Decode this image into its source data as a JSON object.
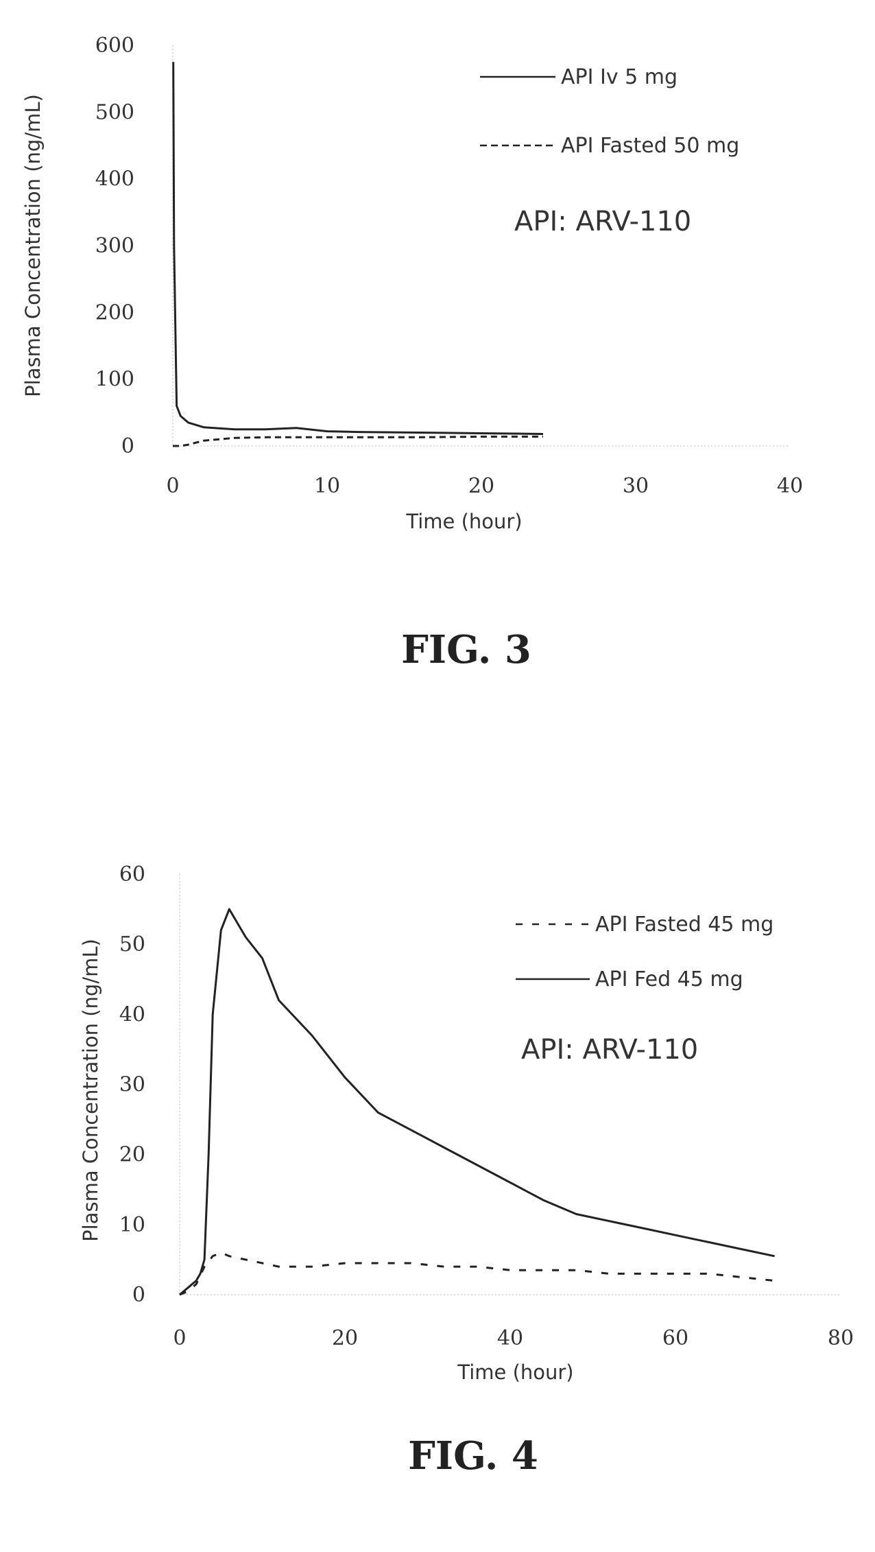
{
  "figures": [
    {
      "caption": "FIG. 3",
      "annotation": "API: ARV-110",
      "chart_data": {
        "type": "line",
        "title": "",
        "xlabel": "Time (hour)",
        "ylabel": "Plasma Concentration (ng/mL)",
        "xlim": [
          0,
          40
        ],
        "ylim": [
          0,
          600
        ],
        "xticks": [
          0,
          10,
          20,
          30,
          40
        ],
        "yticks": [
          0,
          100,
          200,
          300,
          400,
          500,
          600
        ],
        "legend_position": "top-right",
        "series": [
          {
            "name": "API Iv 5 mg",
            "style": "solid",
            "x": [
              0.03,
              0.08,
              0.25,
              0.5,
              1,
              2,
              4,
              6,
              8,
              10,
              12,
              16,
              20,
              24
            ],
            "y": [
              575,
              300,
              60,
              45,
              35,
              28,
              25,
              25,
              27,
              22,
              21,
              20,
              19,
              18
            ]
          },
          {
            "name": "API Fasted 50 mg",
            "style": "dashed",
            "x": [
              0,
              0.5,
              1,
              2,
              4,
              6,
              8,
              10,
              12,
              16,
              20,
              24
            ],
            "y": [
              0,
              0,
              2,
              8,
              12,
              13,
              13,
              13,
              13,
              13,
              14,
              14
            ]
          }
        ]
      }
    },
    {
      "caption": "FIG. 4",
      "annotation": "API: ARV-110",
      "chart_data": {
        "type": "line",
        "title": "",
        "xlabel": "Time (hour)",
        "ylabel": "Plasma Concentration (ng/mL)",
        "xlim": [
          0,
          80
        ],
        "ylim": [
          0,
          60
        ],
        "xticks": [
          0,
          20,
          40,
          60,
          80
        ],
        "yticks": [
          0,
          10,
          20,
          30,
          40,
          50,
          60
        ],
        "legend_position": "top-right",
        "series": [
          {
            "name": "API Fasted 45 mg",
            "style": "dashed",
            "x": [
              0,
              1,
              2,
              3,
              4,
              5,
              6,
              8,
              10,
              12,
              16,
              20,
              24,
              28,
              32,
              36,
              40,
              44,
              48,
              52,
              56,
              60,
              64,
              68,
              72
            ],
            "y": [
              0,
              0.5,
              1.5,
              4,
              5.5,
              6,
              5.5,
              5,
              4.5,
              4,
              4,
              4.5,
              4.5,
              4.5,
              4,
              4,
              3.5,
              3.5,
              3.5,
              3,
              3,
              3,
              3,
              2.5,
              2
            ]
          },
          {
            "name": "API Fed 45 mg",
            "style": "solid",
            "x": [
              0,
              0.5,
              1,
              1.5,
              2,
              2.5,
              3,
              3.5,
              4,
              5,
              6,
              8,
              10,
              12,
              16,
              20,
              24,
              28,
              32,
              36,
              40,
              44,
              48,
              52,
              56,
              60,
              64,
              68,
              72
            ],
            "y": [
              0,
              0.5,
              1,
              1.5,
              2,
              3,
              5,
              20,
              40,
              52,
              55,
              51,
              48,
              42,
              37,
              31,
              26,
              23.5,
              21,
              18.5,
              16,
              13.5,
              11.5,
              10.5,
              9.5,
              8.5,
              7.5,
              6.5,
              5.5
            ]
          }
        ]
      }
    }
  ]
}
